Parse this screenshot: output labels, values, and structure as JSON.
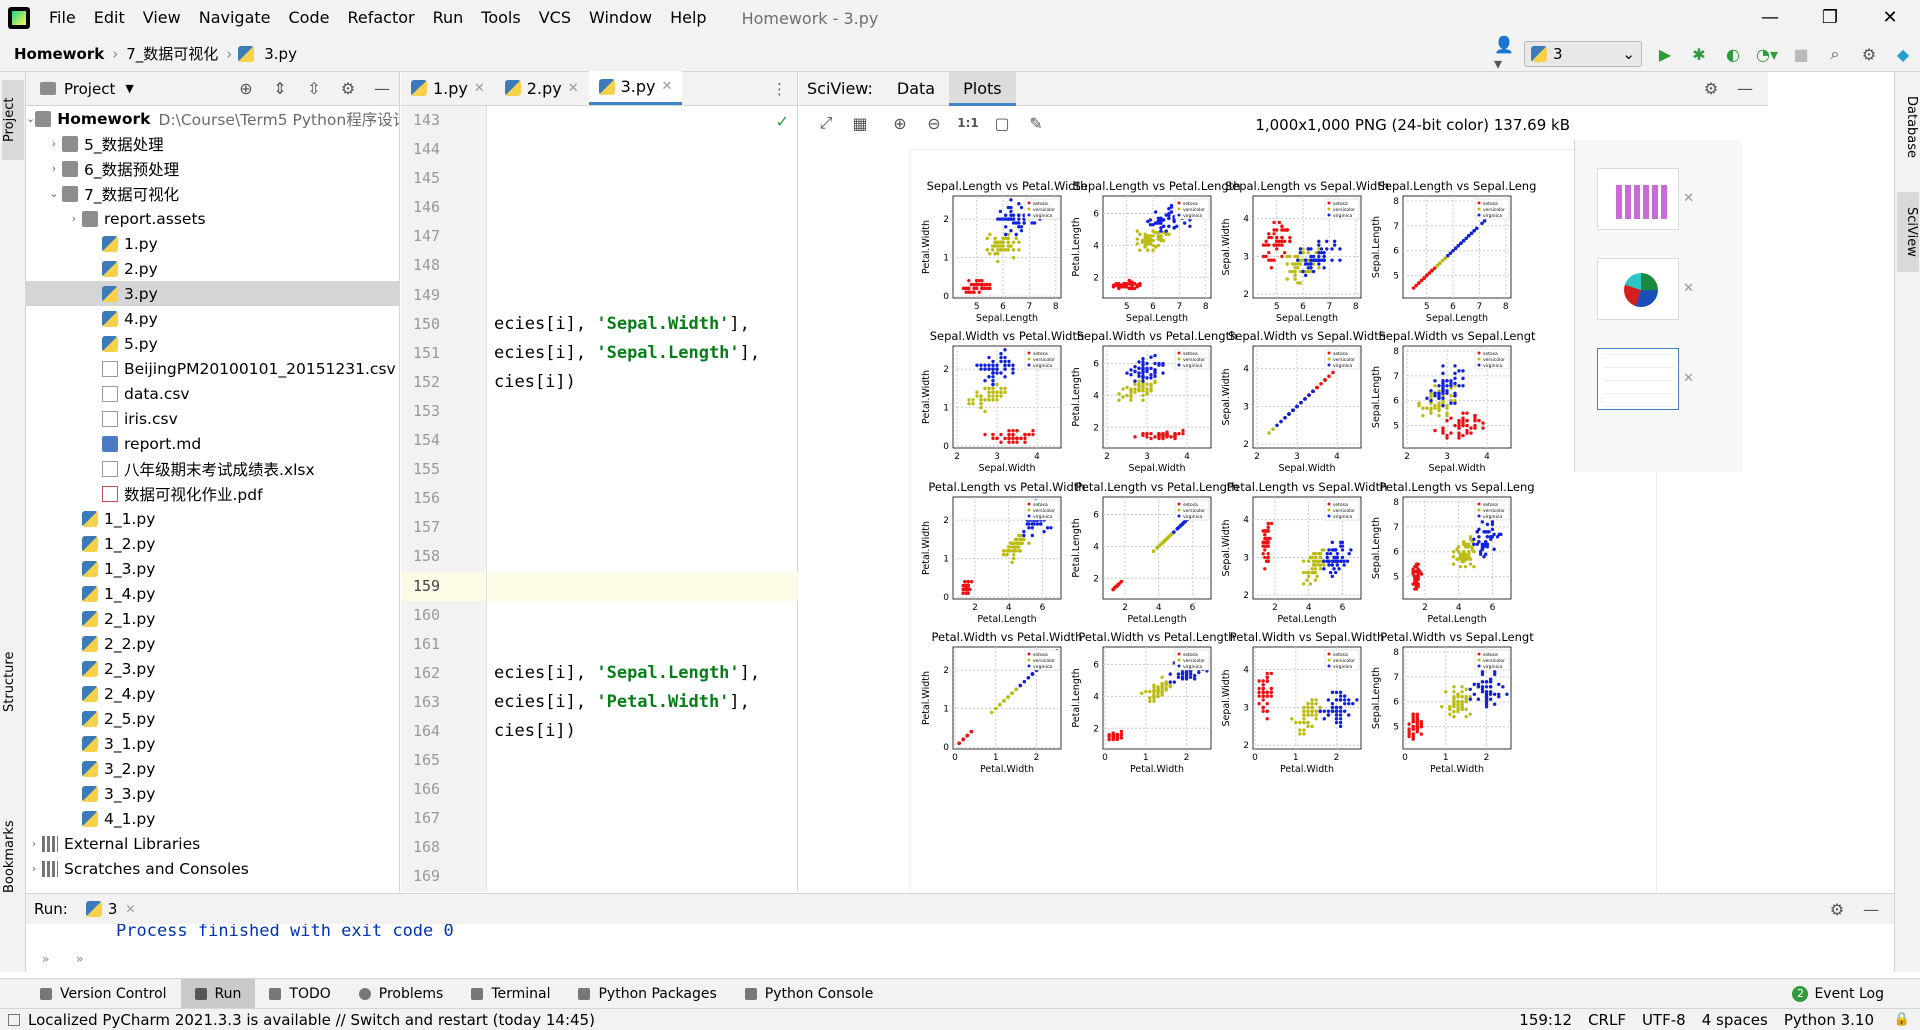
{
  "menubar": {
    "items": [
      "File",
      "Edit",
      "View",
      "Navigate",
      "Code",
      "Refactor",
      "Run",
      "Tools",
      "VCS",
      "Window",
      "Help"
    ],
    "title": "Homework - 3.py"
  },
  "navbar": {
    "crumbs": [
      "Homework",
      "7_数据可视化",
      "3.py"
    ],
    "run_config": "3"
  },
  "left_tabs": {
    "project": "Project",
    "structure": "Structure",
    "bookmarks": "Bookmarks"
  },
  "right_tabs": {
    "database": "Database",
    "sciview": "SciView"
  },
  "project": {
    "label": "Project",
    "root": {
      "name": "Homework",
      "path": "D:\\Course\\Term5 Python程序设计"
    },
    "items": [
      {
        "name": "5_数据处理",
        "type": "folder",
        "depth": 1,
        "arrow": "›"
      },
      {
        "name": "6_数据预处理",
        "type": "folder",
        "depth": 1,
        "arrow": "›"
      },
      {
        "name": "7_数据可视化",
        "type": "folder",
        "depth": 1,
        "arrow": "⌄"
      },
      {
        "name": "report.assets",
        "type": "folder",
        "depth": 2,
        "arrow": "›"
      },
      {
        "name": "1.py",
        "type": "py",
        "depth": 3,
        "arrow": ""
      },
      {
        "name": "2.py",
        "type": "py",
        "depth": 3,
        "arrow": ""
      },
      {
        "name": "3.py",
        "type": "py",
        "depth": 3,
        "arrow": "",
        "selected": true
      },
      {
        "name": "4.py",
        "type": "py",
        "depth": 3,
        "arrow": ""
      },
      {
        "name": "5.py",
        "type": "py",
        "depth": 3,
        "arrow": ""
      },
      {
        "name": "BeijingPM20100101_20151231.csv",
        "type": "csv",
        "depth": 3,
        "arrow": ""
      },
      {
        "name": "data.csv",
        "type": "csv",
        "depth": 3,
        "arrow": ""
      },
      {
        "name": "iris.csv",
        "type": "csv",
        "depth": 3,
        "arrow": ""
      },
      {
        "name": "report.md",
        "type": "md",
        "depth": 3,
        "arrow": ""
      },
      {
        "name": "八年级期末考试成绩表.xlsx",
        "type": "csv",
        "depth": 3,
        "arrow": ""
      },
      {
        "name": "数据可视化作业.pdf",
        "type": "pdf",
        "depth": 3,
        "arrow": ""
      },
      {
        "name": "1_1.py",
        "type": "py",
        "depth": 2,
        "arrow": ""
      },
      {
        "name": "1_2.py",
        "type": "py",
        "depth": 2,
        "arrow": ""
      },
      {
        "name": "1_3.py",
        "type": "py",
        "depth": 2,
        "arrow": ""
      },
      {
        "name": "1_4.py",
        "type": "py",
        "depth": 2,
        "arrow": ""
      },
      {
        "name": "2_1.py",
        "type": "py",
        "depth": 2,
        "arrow": ""
      },
      {
        "name": "2_2.py",
        "type": "py",
        "depth": 2,
        "arrow": ""
      },
      {
        "name": "2_3.py",
        "type": "py",
        "depth": 2,
        "arrow": ""
      },
      {
        "name": "2_4.py",
        "type": "py",
        "depth": 2,
        "arrow": ""
      },
      {
        "name": "2_5.py",
        "type": "py",
        "depth": 2,
        "arrow": ""
      },
      {
        "name": "3_1.py",
        "type": "py",
        "depth": 2,
        "arrow": ""
      },
      {
        "name": "3_2.py",
        "type": "py",
        "depth": 2,
        "arrow": ""
      },
      {
        "name": "3_3.py",
        "type": "py",
        "depth": 2,
        "arrow": ""
      },
      {
        "name": "4_1.py",
        "type": "py",
        "depth": 2,
        "arrow": ""
      },
      {
        "name": "External Libraries",
        "type": "lib",
        "depth": 0,
        "arrow": "›"
      },
      {
        "name": "Scratches and Consoles",
        "type": "lib",
        "depth": 0,
        "arrow": "›"
      }
    ]
  },
  "editor": {
    "tabs": [
      {
        "label": "1.py"
      },
      {
        "label": "2.py"
      },
      {
        "label": "3.py",
        "active": true
      }
    ],
    "lines": [
      {
        "n": "143",
        "code": ""
      },
      {
        "n": "144",
        "code": ""
      },
      {
        "n": "145",
        "code": ""
      },
      {
        "n": "146",
        "code": ""
      },
      {
        "n": "147",
        "code": ""
      },
      {
        "n": "148",
        "code": ""
      },
      {
        "n": "149",
        "code": ""
      },
      {
        "n": "150",
        "pre": "ecies[i], ",
        "str": "'Sepal.Width'",
        "post": "],"
      },
      {
        "n": "151",
        "pre": "ecies[i], ",
        "str": "'Sepal.Length'",
        "post": "],"
      },
      {
        "n": "152",
        "pre": "cies[i])",
        "str": "",
        "post": ""
      },
      {
        "n": "153",
        "code": ""
      },
      {
        "n": "154",
        "code": ""
      },
      {
        "n": "155",
        "code": ""
      },
      {
        "n": "156",
        "code": ""
      },
      {
        "n": "157",
        "code": ""
      },
      {
        "n": "158",
        "code": ""
      },
      {
        "n": "159",
        "code": "",
        "current": true
      },
      {
        "n": "160",
        "code": ""
      },
      {
        "n": "161",
        "code": ""
      },
      {
        "n": "162",
        "pre": "ecies[i], ",
        "str": "'Sepal.Length'",
        "post": "],"
      },
      {
        "n": "163",
        "pre": "ecies[i], ",
        "str": "'Petal.Width'",
        "post": "],"
      },
      {
        "n": "164",
        "pre": "cies[i])",
        "str": "",
        "post": ""
      },
      {
        "n": "165",
        "code": ""
      },
      {
        "n": "166",
        "code": ""
      },
      {
        "n": "167",
        "code": ""
      },
      {
        "n": "168",
        "code": ""
      },
      {
        "n": "169",
        "code": ""
      }
    ]
  },
  "sciview": {
    "label": "SciView:",
    "tabs": [
      "Data",
      "Plots"
    ],
    "image_info": "1,000x1,000 PNG (24-bit color) 137.69 kB",
    "zoom_label": "1:1"
  },
  "run": {
    "label": "Run:",
    "tab": "3",
    "output": "Process finished with exit code 0"
  },
  "bottom_tools": [
    "Version Control",
    "Run",
    "TODO",
    "Problems",
    "Terminal",
    "Python Packages",
    "Python Console"
  ],
  "event_log": "Event Log",
  "event_count": "2",
  "status": {
    "message": "Localized PyCharm 2021.3.3 is available // Switch and restart (today 14:45)",
    "position": "159:12",
    "line_sep": "CRLF",
    "encoding": "UTF-8",
    "indent": "4 spaces",
    "interpreter": "Python 3.10"
  },
  "colors": {
    "setosa": "#ee1111",
    "versicolor": "#bbbb11",
    "virginica": "#1122dd"
  },
  "chart_data": {
    "type": "scatter",
    "grid": true,
    "legend": [
      "setosa",
      "versicolor",
      "virginica"
    ],
    "variables": [
      "Sepal.Length",
      "Sepal.Width",
      "Petal.Length",
      "Petal.Width"
    ],
    "titles": [
      [
        "Sepal.Length vs Petal.Width",
        "Sepal.Length vs Petal.Length",
        "Sepal.Length vs Sepal.Width",
        "Sepal.Length vs Sepal.Leng"
      ],
      [
        "Sepal.Width vs Petal.Width",
        "Sepal.Width vs Petal.Length",
        "Sepal.Width vs Sepal.Width",
        "Sepal.Width vs Sepal.Lengt"
      ],
      [
        "Petal.Length vs Petal.Width",
        "Petal.Length vs Petal.Length",
        "Petal.Length vs Sepal.Width",
        "Petal.Length vs Sepal.Leng"
      ],
      [
        "Petal.Width vs Petal.Width",
        "Petal.Width vs Petal.Length",
        "Petal.Width vs Sepal.Width",
        "Petal.Width vs Sepal.Lengt"
      ]
    ],
    "ylabels": [
      "Petal.Width",
      "Petal.Length",
      "Sepal.Width",
      "Sepal.Length"
    ],
    "xlabels": [
      "Sepal.Length",
      "Sepal.Width",
      "Petal.Length",
      "Petal.Width"
    ],
    "ranges": {
      "Sepal.Length": [
        4.1,
        8.2
      ],
      "Sepal.Width": [
        1.9,
        4.6
      ],
      "Petal.Length": [
        0.7,
        7.1
      ],
      "Petal.Width": [
        -0.05,
        2.6
      ]
    },
    "ticks": {
      "Sepal.Length": [
        5,
        6,
        7,
        8
      ],
      "Sepal.Width": [
        2,
        3,
        4
      ],
      "Petal.Length": [
        2,
        4,
        6
      ],
      "Petal.Width": [
        0,
        1,
        2
      ]
    },
    "species_means": {
      "setosa": [
        5.0,
        3.4,
        1.5,
        0.25
      ],
      "versicolor": [
        5.9,
        2.8,
        4.3,
        1.3
      ],
      "virginica": [
        6.6,
        3.0,
        5.6,
        2.0
      ]
    },
    "species_spread": {
      "setosa": [
        0.35,
        0.38,
        0.17,
        0.1
      ],
      "versicolor": [
        0.5,
        0.31,
        0.47,
        0.2
      ],
      "virginica": [
        0.6,
        0.32,
        0.55,
        0.27
      ]
    }
  }
}
